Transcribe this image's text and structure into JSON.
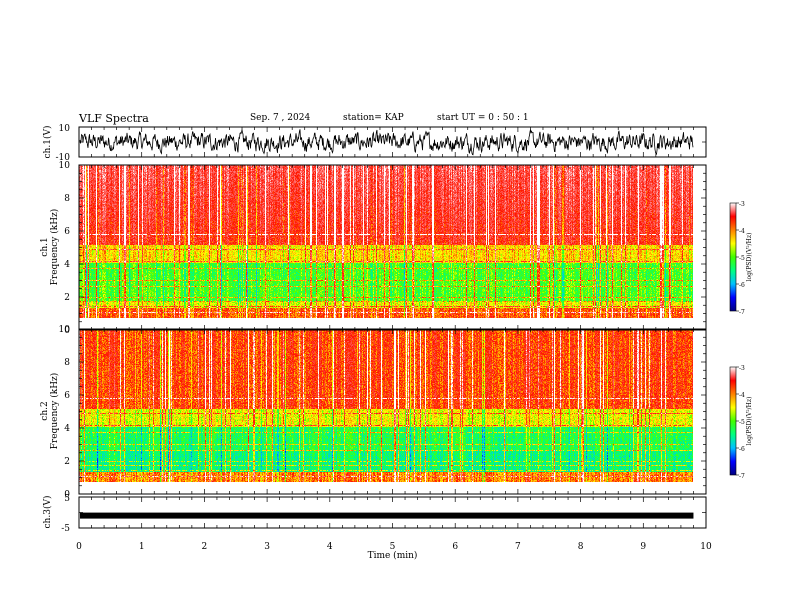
{
  "header": {
    "title": "VLF Spectra",
    "date": "Sep. 7 , 2024",
    "station": "station= KAP",
    "start": "start  UT  =   0  : 50 : 1"
  },
  "panels": {
    "ch1_wave_label": "ch.1(V)",
    "ch1_wave_ticks": [
      "10",
      "-10"
    ],
    "ch1_spec_label_line1": "ch.1",
    "ch1_spec_label_line2": "Frequency  (kHz)",
    "ch2_spec_label_line1": "ch.2",
    "ch2_spec_label_line2": "Frequency  (kHz)",
    "ch3_wave_label": "ch.3(V)",
    "ch3_wave_ticks": [
      "5",
      "-5"
    ],
    "freq_ticks": [
      "10",
      "8",
      "6",
      "4",
      "2",
      "0"
    ]
  },
  "colorbar": {
    "ticks": [
      "-3",
      "-4",
      "-5",
      "-6",
      "-7"
    ],
    "label": "log(PSD)(V²/Hz)",
    "colors": [
      "#000080",
      "#0000ff",
      "#00c0ff",
      "#00ff80",
      "#40ff00",
      "#ffff00",
      "#ff8000",
      "#ff0000",
      "#ffffff"
    ]
  },
  "chart_data": [
    {
      "type": "line",
      "name": "ch.1 waveform",
      "ylabel": "ch.1(V)",
      "ylim": [
        -10,
        10
      ],
      "xlim": [
        0,
        10
      ],
      "x_unit": "min",
      "description_values": {
        "typical_range_V": [
          -7,
          7
        ]
      }
    },
    {
      "type": "heatmap",
      "ylabel": "Frequency (kHz)",
      "channel": "ch.1",
      "xlim": [
        0,
        10
      ],
      "ylim": [
        0,
        10
      ],
      "x_data_end_min": 9.8,
      "clim_log_psd": [
        -7,
        -3
      ]
    },
    {
      "type": "heatmap",
      "ylabel": "Frequency (kHz)",
      "channel": "ch.2",
      "xlim": [
        0,
        10
      ],
      "ylim": [
        0,
        10
      ],
      "x_data_end_min": 9.8,
      "clim_log_psd": [
        -7,
        -3
      ]
    },
    {
      "type": "line",
      "name": "ch.3 waveform",
      "ylabel": "ch.3(V)",
      "ylim": [
        -5,
        5
      ],
      "xlim": [
        0,
        10
      ],
      "level_V": -1
    }
  ],
  "xaxis": {
    "label": "Time  (min)",
    "ticks": [
      "0",
      "1",
      "2",
      "3",
      "4",
      "5",
      "6",
      "7",
      "8",
      "9",
      "10"
    ]
  }
}
